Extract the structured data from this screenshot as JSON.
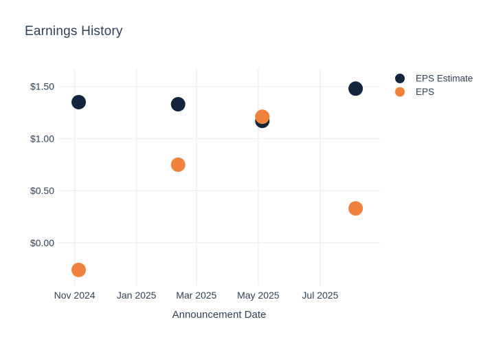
{
  "chart": {
    "title": "Earnings History"
  },
  "colors": {
    "background": "#ffffff",
    "text": "#2f4157",
    "gridline": "#eef1f6",
    "eps_estimate": "#14263e",
    "eps": "#f0823e"
  },
  "legend": {
    "items": [
      {
        "label": "EPS Estimate",
        "swatch": "#14263e"
      },
      {
        "label": "EPS",
        "swatch": "#f0823e"
      }
    ]
  },
  "chart_data": {
    "type": "scatter",
    "title": "Earnings History",
    "xlabel": "Announcement Date",
    "ylabel": "",
    "grid": true,
    "legend_position": "outside-top-right",
    "x_range": [
      "2024-10-16",
      "2025-08-29"
    ],
    "y_range": [
      -0.41,
      1.67
    ],
    "x_ticks": [
      {
        "date": "2024-11-01",
        "label": "Nov 2024"
      },
      {
        "date": "2025-01-01",
        "label": "Jan 2025"
      },
      {
        "date": "2025-03-01",
        "label": "Mar 2025"
      },
      {
        "date": "2025-05-01",
        "label": "May 2025"
      },
      {
        "date": "2025-07-01",
        "label": "Jul 2025"
      }
    ],
    "y_ticks": [
      {
        "value": 0.0,
        "label": "$0.00"
      },
      {
        "value": 0.5,
        "label": "$0.50"
      },
      {
        "value": 1.0,
        "label": "$1.00"
      },
      {
        "value": 1.5,
        "label": "$1.50"
      }
    ],
    "series": [
      {
        "name": "EPS Estimate",
        "color": "#14263e",
        "points": [
          {
            "date": "2024-11-05",
            "value": 1.35
          },
          {
            "date": "2025-02-11",
            "value": 1.33
          },
          {
            "date": "2025-05-05",
            "value": 1.17
          },
          {
            "date": "2025-08-05",
            "value": 1.48
          }
        ]
      },
      {
        "name": "EPS",
        "color": "#f0823e",
        "points": [
          {
            "date": "2024-11-05",
            "value": -0.26
          },
          {
            "date": "2025-02-11",
            "value": 0.75
          },
          {
            "date": "2025-05-05",
            "value": 1.21
          },
          {
            "date": "2025-08-05",
            "value": 0.33
          }
        ]
      }
    ]
  }
}
